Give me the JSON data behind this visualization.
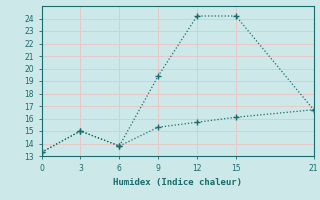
{
  "xlabel": "Humidex (Indice chaleur)",
  "ylabel": "",
  "background_color": "#cce8e8",
  "line_color": "#1a6b6b",
  "grid_color": "#e8c8c8",
  "x_ticks": [
    0,
    3,
    6,
    9,
    12,
    15,
    21
  ],
  "ylim": [
    13,
    25
  ],
  "xlim": [
    0,
    21
  ],
  "y_ticks": [
    13,
    14,
    15,
    16,
    17,
    18,
    19,
    20,
    21,
    22,
    23,
    24
  ],
  "line1_x": [
    0,
    3,
    6,
    9,
    12,
    15,
    21
  ],
  "line1_y": [
    13.3,
    15.0,
    13.8,
    19.4,
    24.2,
    24.2,
    16.7
  ],
  "line2_x": [
    0,
    3,
    6,
    9,
    12,
    15,
    21
  ],
  "line2_y": [
    13.3,
    15.0,
    13.8,
    15.3,
    15.7,
    16.1,
    16.7
  ]
}
